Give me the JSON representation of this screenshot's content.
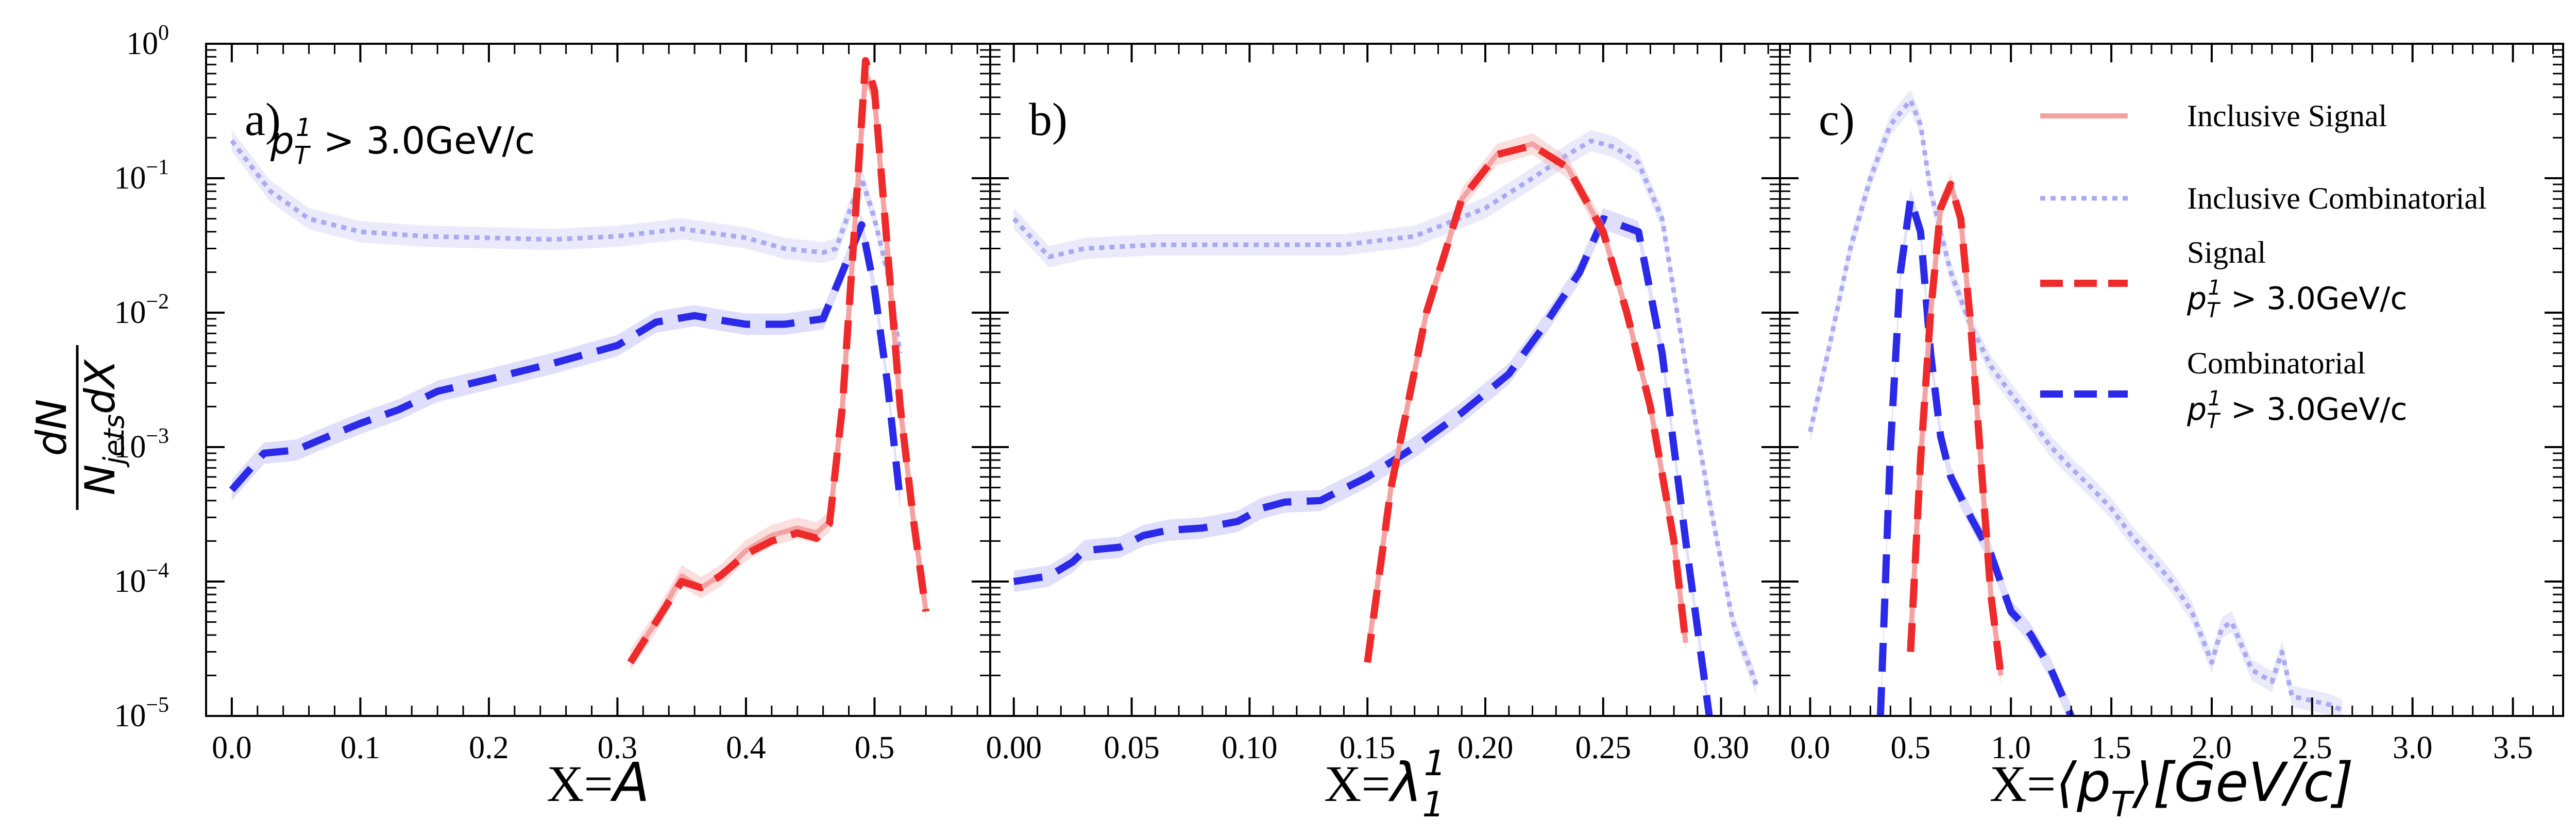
{
  "chart_data": {
    "type": "line",
    "yscale": "log",
    "ylim": [
      1e-05,
      1
    ],
    "ylabel": {
      "numerator": "dN",
      "denominator": "N",
      "denominator_sub": "jets",
      "denominator_tail": "dX"
    },
    "ytick_labels": [
      "10",
      "10",
      "10",
      "10",
      "10",
      "10"
    ],
    "ytick_exponents": [
      "0",
      "−1",
      "−2",
      "−3",
      "−4",
      "−5"
    ],
    "ytick_values": [
      1,
      0.1,
      0.01,
      0.001,
      0.0001,
      1e-05
    ],
    "legend": {
      "placement": "top-right of panel c",
      "entries": [
        {
          "key": "inc_sig",
          "lines": [
            "Inclusive Signal"
          ],
          "color": "#f4a3a3",
          "style": "solid"
        },
        {
          "key": "inc_comb",
          "lines": [
            "Inclusive Combinatorial"
          ],
          "color": "#aaaaf0",
          "style": "dotted"
        },
        {
          "key": "sig",
          "lines": [
            "Signal"
          ],
          "cut": "p",
          "color": "#ee2a2a",
          "style": "dashed"
        },
        {
          "key": "comb",
          "lines": [
            "Combinatorial"
          ],
          "cut": "p",
          "color": "#2a2ae8",
          "style": "dashed"
        }
      ],
      "cut_text": "p",
      "cut_sub": "T",
      "cut_sup": "1",
      "cut_value": " > 3.0GeV/c"
    },
    "panels": [
      {
        "letter": "a)",
        "annotation": {
          "base": "p",
          "sub": "T",
          "sup": "1",
          "rest": " > 3.0GeV/c"
        },
        "xlabel": {
          "prefix": "X=",
          "math": "A"
        },
        "xlim": [
          -0.02,
          0.59
        ],
        "xticks": [
          0.0,
          0.1,
          0.2,
          0.3,
          0.4,
          0.5
        ],
        "xtick_labels": [
          "0.0",
          "0.1",
          "0.2",
          "0.3",
          "0.4",
          "0.5"
        ],
        "series": {
          "inc_comb": [
            [
              0.0,
              0.19
            ],
            [
              0.03,
              0.08
            ],
            [
              0.06,
              0.05
            ],
            [
              0.1,
              0.04
            ],
            [
              0.15,
              0.037
            ],
            [
              0.2,
              0.036
            ],
            [
              0.25,
              0.035
            ],
            [
              0.3,
              0.037
            ],
            [
              0.35,
              0.042
            ],
            [
              0.4,
              0.036
            ],
            [
              0.43,
              0.03
            ],
            [
              0.46,
              0.028
            ],
            [
              0.47,
              0.03
            ],
            [
              0.49,
              0.1
            ],
            [
              0.5,
              0.05
            ],
            [
              0.51,
              0.02
            ],
            [
              0.52,
              0.005
            ]
          ],
          "comb": [
            [
              0.0,
              0.00048
            ],
            [
              0.025,
              0.0009
            ],
            [
              0.05,
              0.00095
            ],
            [
              0.075,
              0.0012
            ],
            [
              0.1,
              0.0015
            ],
            [
              0.13,
              0.0019
            ],
            [
              0.16,
              0.0026
            ],
            [
              0.2,
              0.0032
            ],
            [
              0.25,
              0.0042
            ],
            [
              0.3,
              0.0057
            ],
            [
              0.33,
              0.0085
            ],
            [
              0.36,
              0.0095
            ],
            [
              0.38,
              0.0088
            ],
            [
              0.4,
              0.0082
            ],
            [
              0.43,
              0.0082
            ],
            [
              0.46,
              0.009
            ],
            [
              0.475,
              0.02
            ],
            [
              0.49,
              0.045
            ],
            [
              0.5,
              0.015
            ],
            [
              0.51,
              0.003
            ],
            [
              0.52,
              0.0004
            ]
          ],
          "inc_sig": [
            [
              0.31,
              2.6e-05
            ],
            [
              0.33,
              5e-05
            ],
            [
              0.35,
              0.00011
            ],
            [
              0.365,
              9e-05
            ],
            [
              0.38,
              0.00011
            ],
            [
              0.4,
              0.00017
            ],
            [
              0.42,
              0.00022
            ],
            [
              0.44,
              0.00025
            ],
            [
              0.455,
              0.00023
            ],
            [
              0.465,
              0.00028
            ],
            [
              0.475,
              0.002
            ],
            [
              0.485,
              0.05
            ],
            [
              0.493,
              0.6
            ],
            [
              0.5,
              0.4
            ],
            [
              0.51,
              0.03
            ],
            [
              0.52,
              0.002
            ],
            [
              0.53,
              0.0003
            ],
            [
              0.54,
              6e-05
            ]
          ],
          "sig": [
            [
              0.31,
              2.5e-05
            ],
            [
              0.33,
              5e-05
            ],
            [
              0.35,
              0.0001
            ],
            [
              0.365,
              9e-05
            ],
            [
              0.38,
              0.00011
            ],
            [
              0.4,
              0.00016
            ],
            [
              0.42,
              0.0002
            ],
            [
              0.44,
              0.00023
            ],
            [
              0.455,
              0.00021
            ],
            [
              0.465,
              0.00027
            ],
            [
              0.475,
              0.002
            ],
            [
              0.485,
              0.05
            ],
            [
              0.493,
              0.75
            ],
            [
              0.5,
              0.45
            ],
            [
              0.51,
              0.03
            ],
            [
              0.52,
              0.002
            ],
            [
              0.53,
              0.0003
            ],
            [
              0.54,
              6e-05
            ]
          ]
        }
      },
      {
        "letter": "b)",
        "xlabel": {
          "prefix": "X=",
          "math": "λ",
          "sub": "1",
          "sup": "1"
        },
        "xlim": [
          -0.01,
          0.325
        ],
        "xticks": [
          0.0,
          0.05,
          0.1,
          0.15,
          0.2,
          0.25,
          0.3
        ],
        "xtick_labels": [
          "0.00",
          "0.05",
          "0.10",
          "0.15",
          "0.20",
          "0.25",
          "0.30"
        ],
        "series": {
          "inc_comb": [
            [
              0.0,
              0.05
            ],
            [
              0.015,
              0.026
            ],
            [
              0.03,
              0.03
            ],
            [
              0.06,
              0.032
            ],
            [
              0.1,
              0.032
            ],
            [
              0.14,
              0.032
            ],
            [
              0.17,
              0.037
            ],
            [
              0.2,
              0.06
            ],
            [
              0.22,
              0.1
            ],
            [
              0.235,
              0.15
            ],
            [
              0.245,
              0.19
            ],
            [
              0.255,
              0.17
            ],
            [
              0.265,
              0.13
            ],
            [
              0.275,
              0.05
            ],
            [
              0.285,
              0.004
            ],
            [
              0.295,
              0.0004
            ],
            [
              0.305,
              5e-05
            ],
            [
              0.315,
              1.7e-05
            ]
          ],
          "comb": [
            [
              0.0,
              0.0001
            ],
            [
              0.015,
              0.00011
            ],
            [
              0.025,
              0.00014
            ],
            [
              0.03,
              0.00017
            ],
            [
              0.045,
              0.00018
            ],
            [
              0.055,
              0.00022
            ],
            [
              0.065,
              0.00024
            ],
            [
              0.08,
              0.00025
            ],
            [
              0.095,
              0.00028
            ],
            [
              0.105,
              0.00035
            ],
            [
              0.115,
              0.00039
            ],
            [
              0.13,
              0.0004
            ],
            [
              0.15,
              0.0006
            ],
            [
              0.17,
              0.001
            ],
            [
              0.19,
              0.0018
            ],
            [
              0.21,
              0.0035
            ],
            [
              0.225,
              0.008
            ],
            [
              0.24,
              0.02
            ],
            [
              0.25,
              0.05
            ],
            [
              0.265,
              0.04
            ],
            [
              0.275,
              0.005
            ],
            [
              0.285,
              0.0002
            ],
            [
              0.295,
              1e-05
            ]
          ],
          "inc_sig": [
            [
              0.15,
              2.8e-05
            ],
            [
              0.16,
              0.0005
            ],
            [
              0.175,
              0.01
            ],
            [
              0.19,
              0.07
            ],
            [
              0.205,
              0.15
            ],
            [
              0.22,
              0.18
            ],
            [
              0.235,
              0.12
            ],
            [
              0.25,
              0.04
            ],
            [
              0.26,
              0.01
            ],
            [
              0.27,
              0.002
            ],
            [
              0.28,
              0.0002
            ],
            [
              0.285,
              3.5e-05
            ]
          ],
          "sig": [
            [
              0.15,
              2.5e-05
            ],
            [
              0.16,
              0.0005
            ],
            [
              0.175,
              0.01
            ],
            [
              0.19,
              0.07
            ],
            [
              0.205,
              0.15
            ],
            [
              0.22,
              0.175
            ],
            [
              0.235,
              0.12
            ],
            [
              0.25,
              0.04
            ],
            [
              0.26,
              0.01
            ],
            [
              0.27,
              0.002
            ],
            [
              0.28,
              0.0002
            ],
            [
              0.285,
              3.5e-05
            ]
          ]
        }
      },
      {
        "letter": "c)",
        "xlabel": {
          "prefix": "X=",
          "math": "⟨p",
          "sub": "T",
          "tail": "⟩[GeV/c]"
        },
        "xlim": [
          -0.15,
          3.75
        ],
        "xticks": [
          0.0,
          0.5,
          1.0,
          1.5,
          2.0,
          2.5,
          3.0,
          3.5
        ],
        "xtick_labels": [
          "0.0",
          "0.5",
          "1.0",
          "1.5",
          "2.0",
          "2.5",
          "3.0",
          "3.5"
        ],
        "series": {
          "inc_comb": [
            [
              0.0,
              0.0013
            ],
            [
              0.1,
              0.006
            ],
            [
              0.2,
              0.03
            ],
            [
              0.3,
              0.1
            ],
            [
              0.4,
              0.25
            ],
            [
              0.5,
              0.38
            ],
            [
              0.55,
              0.25
            ],
            [
              0.6,
              0.08
            ],
            [
              0.7,
              0.02
            ],
            [
              0.8,
              0.008
            ],
            [
              0.9,
              0.004
            ],
            [
              1.0,
              0.0025
            ],
            [
              1.1,
              0.0016
            ],
            [
              1.2,
              0.001
            ],
            [
              1.3,
              0.0007
            ],
            [
              1.4,
              0.0005
            ],
            [
              1.5,
              0.00035
            ],
            [
              1.6,
              0.00022
            ],
            [
              1.7,
              0.00015
            ],
            [
              1.8,
              0.0001
            ],
            [
              1.9,
              6e-05
            ],
            [
              2.0,
              2.5e-05
            ],
            [
              2.05,
              4.5e-05
            ],
            [
              2.1,
              5e-05
            ],
            [
              2.2,
              2.2e-05
            ],
            [
              2.3,
              1.8e-05
            ],
            [
              2.35,
              3e-05
            ],
            [
              2.4,
              1.4e-05
            ],
            [
              2.5,
              1.3e-05
            ],
            [
              2.6,
              1.2e-05
            ],
            [
              2.65,
              1.1e-05
            ]
          ],
          "comb": [
            [
              0.35,
              1e-05
            ],
            [
              0.4,
              0.001
            ],
            [
              0.45,
              0.02
            ],
            [
              0.5,
              0.07
            ],
            [
              0.55,
              0.04
            ],
            [
              0.6,
              0.005
            ],
            [
              0.65,
              0.0012
            ],
            [
              0.7,
              0.0006
            ],
            [
              0.8,
              0.0003
            ],
            [
              0.9,
              0.00016
            ],
            [
              1.0,
              6e-05
            ],
            [
              1.05,
              5e-05
            ],
            [
              1.1,
              4e-05
            ],
            [
              1.2,
              2.2e-05
            ],
            [
              1.3,
              1e-05
            ]
          ],
          "inc_sig": [
            [
              0.5,
              3.5e-05
            ],
            [
              0.55,
              0.0008
            ],
            [
              0.6,
              0.01
            ],
            [
              0.65,
              0.06
            ],
            [
              0.7,
              0.09
            ],
            [
              0.75,
              0.05
            ],
            [
              0.8,
              0.008
            ],
            [
              0.85,
              0.0008
            ],
            [
              0.9,
              8e-05
            ],
            [
              0.95,
              2e-05
            ]
          ],
          "sig": [
            [
              0.5,
              3e-05
            ],
            [
              0.55,
              0.0008
            ],
            [
              0.6,
              0.01
            ],
            [
              0.65,
              0.06
            ],
            [
              0.7,
              0.09
            ],
            [
              0.75,
              0.05
            ],
            [
              0.8,
              0.008
            ],
            [
              0.85,
              0.0008
            ],
            [
              0.9,
              8e-05
            ],
            [
              0.95,
              2e-05
            ]
          ]
        }
      }
    ]
  }
}
